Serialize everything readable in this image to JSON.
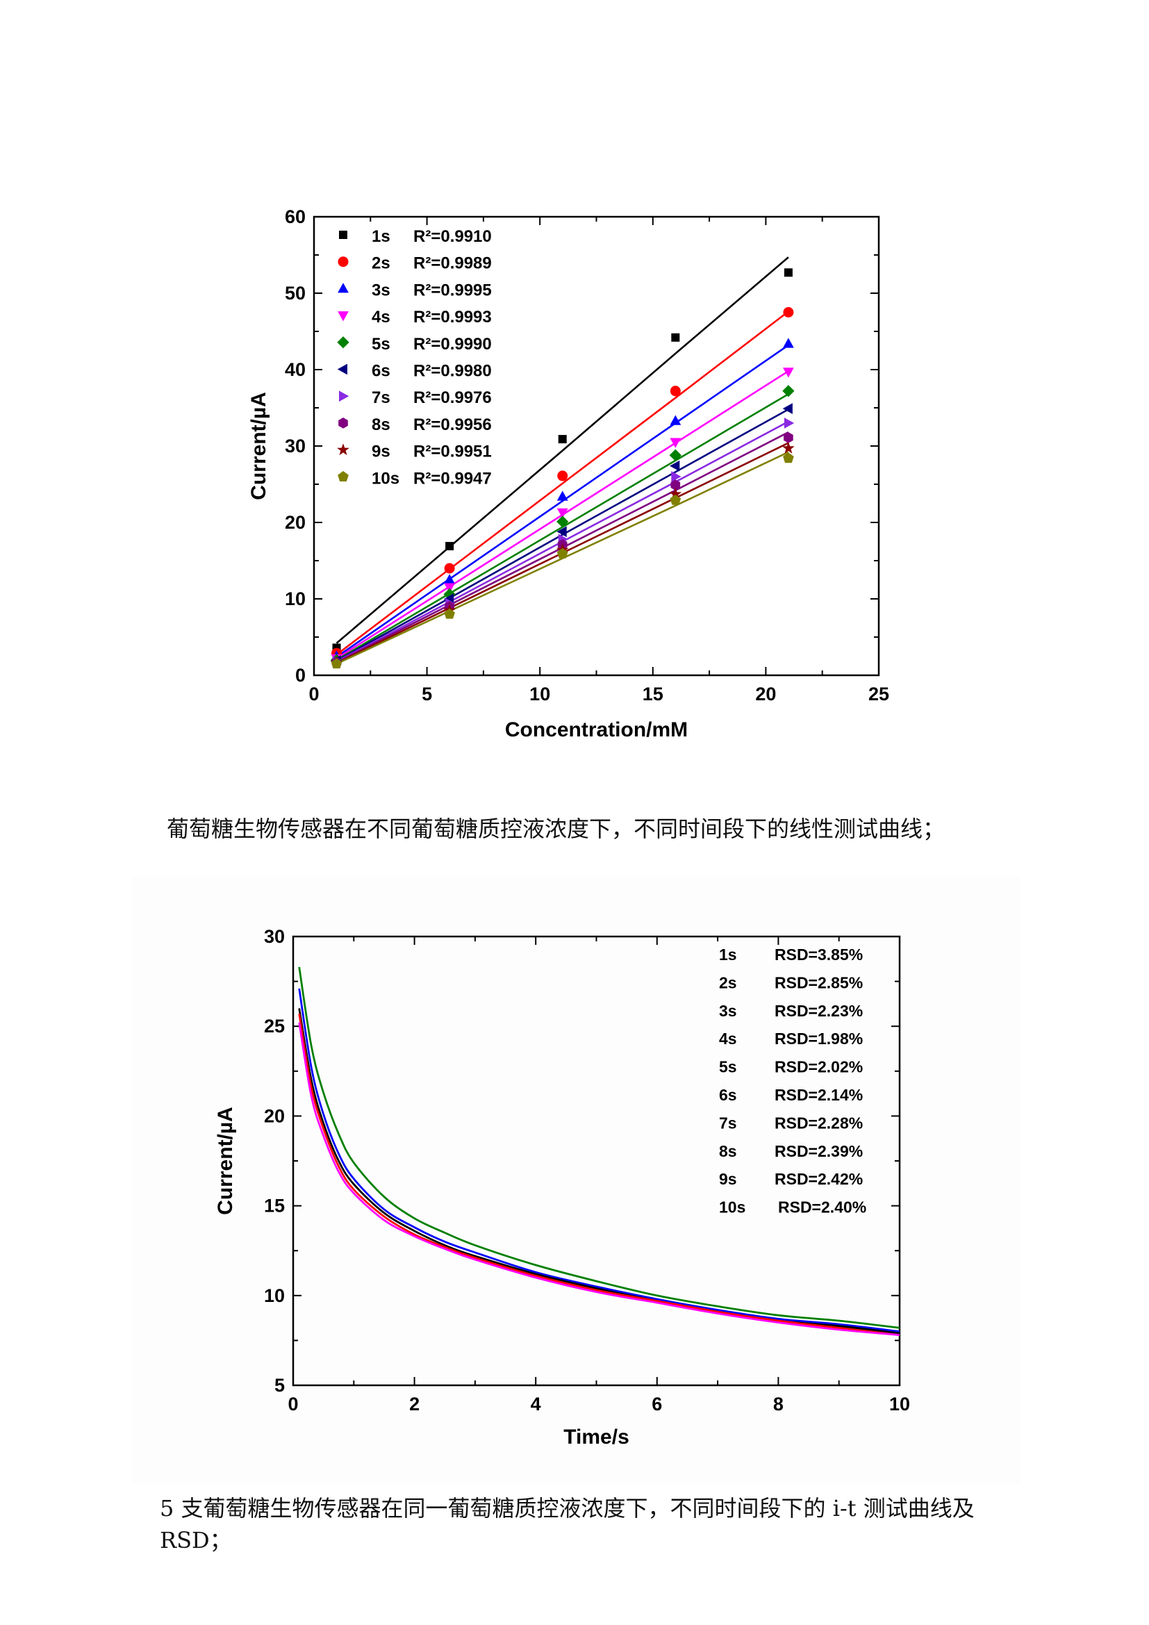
{
  "captions": {
    "fig1": "葡萄糖生物传感器在不同葡萄糖质控液浓度下，不同时间段下的线性测试曲线；",
    "fig2": "5 支葡萄糖生物传感器在同一葡萄糖质控液浓度下，不同时间段下的 i-t 测试曲线及 RSD；"
  },
  "chart_data": [
    {
      "type": "scatter",
      "title": "",
      "xlabel": "Concentration/mM",
      "ylabel": "Current/µA",
      "xlim": [
        0,
        25
      ],
      "ylim": [
        0,
        60
      ],
      "xticks": [
        0,
        5,
        10,
        15,
        20,
        25
      ],
      "yticks": [
        0,
        10,
        20,
        30,
        40,
        50,
        60
      ],
      "legend_position": "top-left",
      "grid": false,
      "x": [
        1,
        6,
        11,
        16,
        21
      ],
      "series": [
        {
          "name": "1s",
          "r2": "R²=0.9910",
          "color": "#000000",
          "marker": "square",
          "values": [
            3.6,
            16.9,
            30.9,
            44.2,
            52.7
          ],
          "fit": [
            4.2,
            16.8,
            29.4,
            42.1,
            54.7
          ]
        },
        {
          "name": "2s",
          "r2": "R²=0.9989",
          "color": "#ff0000",
          "marker": "circle",
          "values": [
            2.9,
            14.0,
            26.1,
            37.2,
            47.5
          ],
          "fit": [
            2.7,
            13.9,
            25.1,
            36.3,
            47.6
          ]
        },
        {
          "name": "3s",
          "r2": "R²=0.9995",
          "color": "#0000ff",
          "marker": "triangle-up",
          "values": [
            2.5,
            12.5,
            23.4,
            33.3,
            43.4
          ],
          "fit": [
            2.4,
            12.6,
            22.8,
            33.0,
            43.2
          ]
        },
        {
          "name": "4s",
          "r2": "R²=0.9993",
          "color": "#ff00ff",
          "marker": "triangle-down",
          "values": [
            2.2,
            11.5,
            21.3,
            30.5,
            39.7
          ],
          "fit": [
            2.2,
            11.6,
            21.0,
            30.4,
            39.8
          ]
        },
        {
          "name": "5s",
          "r2": "R²=0.9990",
          "color": "#008000",
          "marker": "diamond",
          "values": [
            2.0,
            10.6,
            20.1,
            28.8,
            37.2
          ],
          "fit": [
            2.0,
            10.7,
            19.4,
            28.1,
            36.8
          ]
        },
        {
          "name": "6s",
          "r2": "R²=0.9980",
          "color": "#000080",
          "marker": "triangle-left",
          "values": [
            1.9,
            10.0,
            18.8,
            27.4,
            34.9
          ],
          "fit": [
            1.9,
            10.1,
            18.4,
            26.6,
            34.8
          ]
        },
        {
          "name": "7s",
          "r2": "R²=0.9976",
          "color": "#8a2be2",
          "marker": "triangle-right",
          "values": [
            1.8,
            9.4,
            17.8,
            26.0,
            33.0
          ],
          "fit": [
            1.8,
            9.6,
            17.5,
            25.3,
            33.2
          ]
        },
        {
          "name": "8s",
          "r2": "R²=0.9956",
          "color": "#800080",
          "marker": "hexagon",
          "values": [
            1.7,
            9.0,
            17.1,
            24.9,
            31.1
          ],
          "fit": [
            1.7,
            9.2,
            16.7,
            24.2,
            31.8
          ]
        },
        {
          "name": "9s",
          "r2": "R²=0.9951",
          "color": "#8b0000",
          "marker": "star",
          "values": [
            1.6,
            8.5,
            16.4,
            23.7,
            29.7
          ],
          "fit": [
            1.6,
            8.8,
            16.0,
            23.2,
            30.4
          ]
        },
        {
          "name": "10s",
          "r2": "R²=0.9947",
          "color": "#808000",
          "marker": "pentagon",
          "values": [
            1.5,
            8.0,
            15.9,
            22.9,
            28.4
          ],
          "fit": [
            1.5,
            8.4,
            15.3,
            22.2,
            29.2
          ]
        }
      ]
    },
    {
      "type": "line",
      "title": "",
      "xlabel": "Time/s",
      "ylabel": "Current/µA",
      "xlim": [
        0,
        10
      ],
      "ylim": [
        5,
        30
      ],
      "xticks": [
        0,
        2,
        4,
        6,
        8,
        10
      ],
      "yticks": [
        5,
        10,
        15,
        20,
        25,
        30
      ],
      "grid": false,
      "legend_position": "top-right",
      "legend": [
        {
          "label": "1s",
          "value": "RSD=3.85%"
        },
        {
          "label": "2s",
          "value": "RSD=2.85%"
        },
        {
          "label": "3s",
          "value": "RSD=2.23%"
        },
        {
          "label": "4s",
          "value": "RSD=1.98%"
        },
        {
          "label": "5s",
          "value": "RSD=2.02%"
        },
        {
          "label": "6s",
          "value": "RSD=2.14%"
        },
        {
          "label": "7s",
          "value": "RSD=2.28%"
        },
        {
          "label": "8s",
          "value": "RSD=2.39%"
        },
        {
          "label": "9s",
          "value": "RSD=2.42%"
        },
        {
          "label": "10s",
          "value": "RSD=2.40%"
        }
      ],
      "x": [
        0.1,
        0.3,
        0.5,
        0.75,
        1.0,
        1.5,
        2.0,
        2.5,
        3.0,
        4.0,
        5.0,
        6.0,
        7.0,
        8.0,
        9.0,
        10.0
      ],
      "series": [
        {
          "color": "#008000",
          "values": [
            28.3,
            23.9,
            21.3,
            19.0,
            17.4,
            15.5,
            14.3,
            13.5,
            12.8,
            11.7,
            10.8,
            10.0,
            9.4,
            8.9,
            8.6,
            8.2
          ]
        },
        {
          "color": "#0000ff",
          "values": [
            27.1,
            22.7,
            20.1,
            17.9,
            16.5,
            14.8,
            13.8,
            13.0,
            12.4,
            11.3,
            10.5,
            9.8,
            9.2,
            8.7,
            8.4,
            8.0
          ]
        },
        {
          "color": "#000000",
          "values": [
            26.0,
            22.0,
            19.6,
            17.5,
            16.2,
            14.6,
            13.6,
            12.8,
            12.2,
            11.2,
            10.4,
            9.7,
            9.1,
            8.6,
            8.3,
            7.9
          ]
        },
        {
          "color": "#ff0000",
          "values": [
            25.7,
            21.6,
            19.3,
            17.2,
            15.9,
            14.4,
            13.4,
            12.7,
            12.1,
            11.1,
            10.3,
            9.7,
            9.1,
            8.6,
            8.2,
            7.8
          ]
        },
        {
          "color": "#ff00ff",
          "values": [
            25.2,
            21.1,
            18.9,
            16.9,
            15.7,
            14.2,
            13.3,
            12.6,
            12.0,
            11.0,
            10.2,
            9.6,
            9.0,
            8.5,
            8.1,
            7.8
          ]
        }
      ]
    }
  ]
}
